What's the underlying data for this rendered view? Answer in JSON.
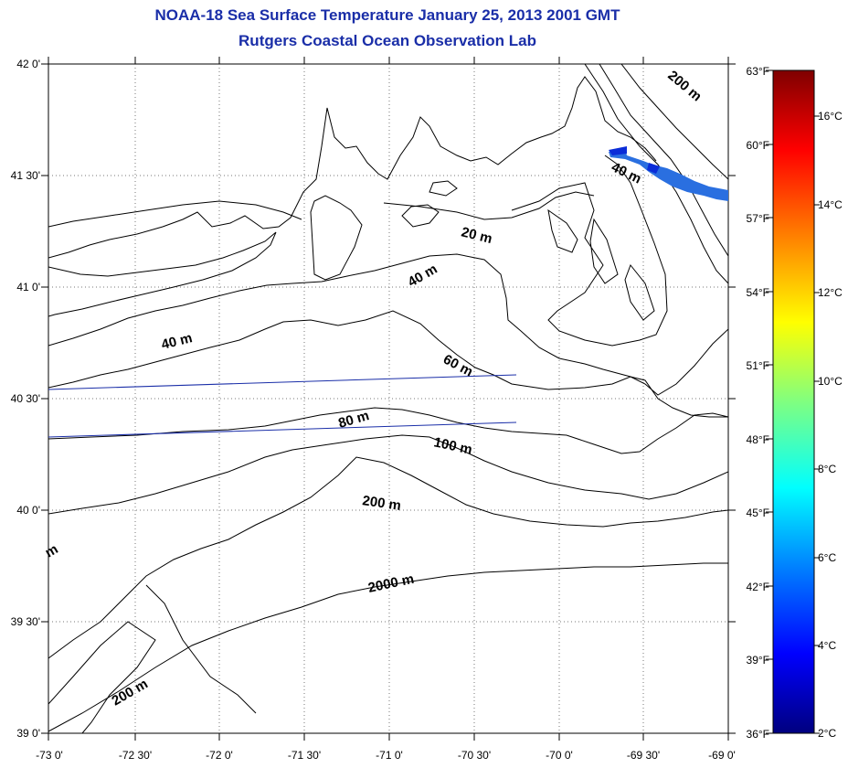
{
  "title": "NOAA-18 Sea Surface Temperature January 25, 2013 2001 GMT",
  "subtitle": "Rutgers Coastal Ocean Observation Lab",
  "map": {
    "lon_range": [
      -73,
      -69
    ],
    "lat_range": [
      39,
      42
    ],
    "lon_labels": [
      "-73 0'",
      "-72 30'",
      "-72 0'",
      "-71 30'",
      "-71 0'",
      "-70 30'",
      "-70 0'",
      "-69 30'",
      "-69 0'"
    ],
    "lat_labels": [
      "42 0'",
      "41 30'",
      "41 0'",
      "40 30'",
      "40 0'",
      "39 30'",
      "39 0'"
    ],
    "grid": "dotted",
    "contour_labels": [
      "20 m",
      "40 m",
      "40 m",
      "40 m",
      "60 m",
      "80 m",
      "100 m",
      "200 m",
      "200 m",
      "200 m",
      "2000 m",
      "m"
    ]
  },
  "colorbar": {
    "fahrenheit_labels": [
      "63°F",
      "60°F",
      "57°F",
      "54°F",
      "51°F",
      "48°F",
      "45°F",
      "42°F",
      "39°F",
      "36°F"
    ],
    "celsius_labels": [
      "16°C",
      "14°C",
      "12°C",
      "10°C",
      "8°C",
      "6°C",
      "4°C",
      "2°C"
    ],
    "range_c": [
      2,
      17.2
    ],
    "colors": [
      "#00007f",
      "#0000ff",
      "#0080ff",
      "#00ffff",
      "#80ff80",
      "#ffff00",
      "#ff8000",
      "#ff0000",
      "#7f0000"
    ]
  },
  "colors": {
    "title": "#1a2ea8",
    "track": "#1a2ea8"
  }
}
